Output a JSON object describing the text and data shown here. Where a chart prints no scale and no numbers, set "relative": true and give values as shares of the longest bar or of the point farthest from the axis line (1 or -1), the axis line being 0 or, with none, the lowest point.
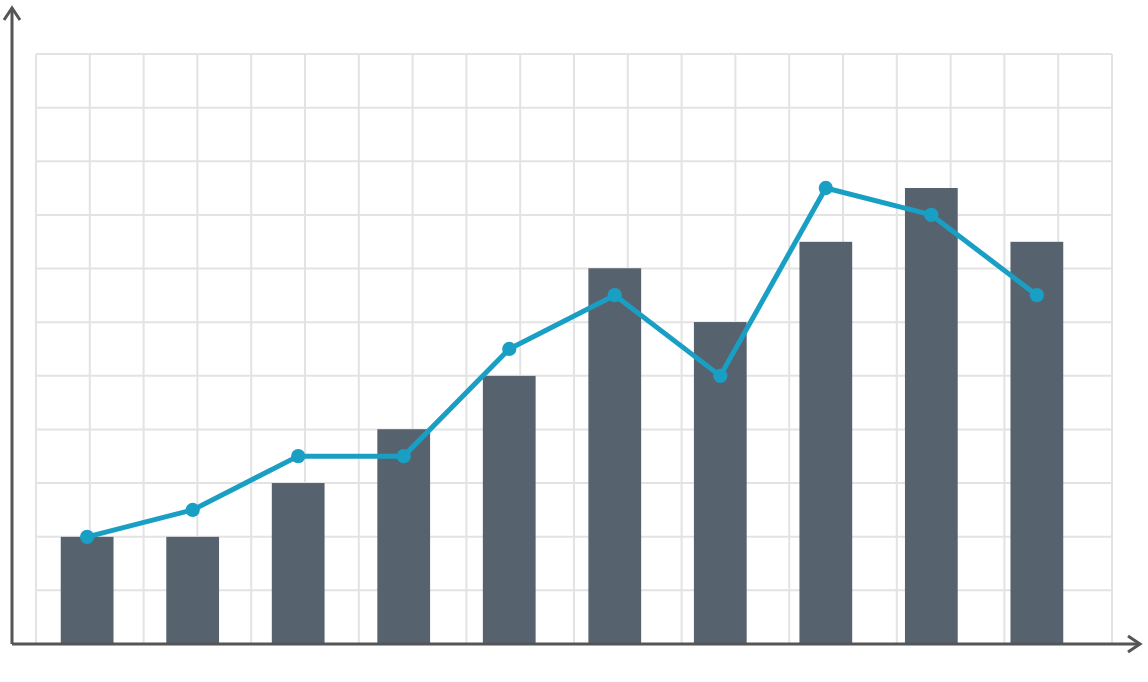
{
  "chart_data": [
    {
      "type": "bar",
      "relative": true,
      "grid": true,
      "categories": [
        null,
        null,
        null,
        null,
        null,
        null,
        null,
        null,
        null,
        null
      ],
      "series": [
        {
          "color": "#56636f",
          "values": [
            0.235,
            0.235,
            0.353,
            0.471,
            0.588,
            0.824,
            0.706,
            0.882,
            1,
            0.882
          ]
        }
      ]
    },
    {
      "type": "line",
      "relative": true,
      "marker": "circle",
      "categories": [
        null,
        null,
        null,
        null,
        null,
        null,
        null,
        null,
        null,
        null
      ],
      "series": [
        {
          "color": "#1a9fc4",
          "values": [
            0.235,
            0.294,
            0.412,
            0.412,
            0.647,
            0.765,
            0.588,
            1,
            0.941,
            0.765
          ]
        }
      ]
    }
  ]
}
